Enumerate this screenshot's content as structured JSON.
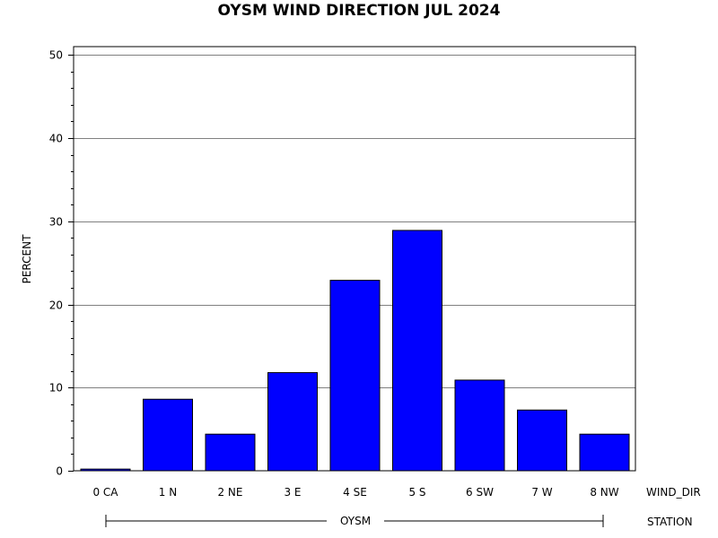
{
  "chart_data": {
    "type": "bar",
    "title": "OYSM WIND DIRECTION JUL 2024",
    "ylabel": "PERCENT",
    "xlabel": "WIND_DIR",
    "group_axis_label": "STATION",
    "group_label": "OYSM",
    "categories": [
      "0 CA",
      "1 N",
      "2 NE",
      "3 E",
      "4 SE",
      "5 S",
      "6 SW",
      "7 W",
      "8 NW"
    ],
    "values": [
      0.2,
      8.6,
      4.4,
      11.8,
      22.9,
      28.9,
      10.9,
      7.3,
      4.4
    ],
    "ylim": [
      0,
      51
    ],
    "yticks": [
      0,
      10,
      20,
      30,
      40,
      50
    ],
    "grid": true,
    "bar_color": "#0000ff"
  }
}
